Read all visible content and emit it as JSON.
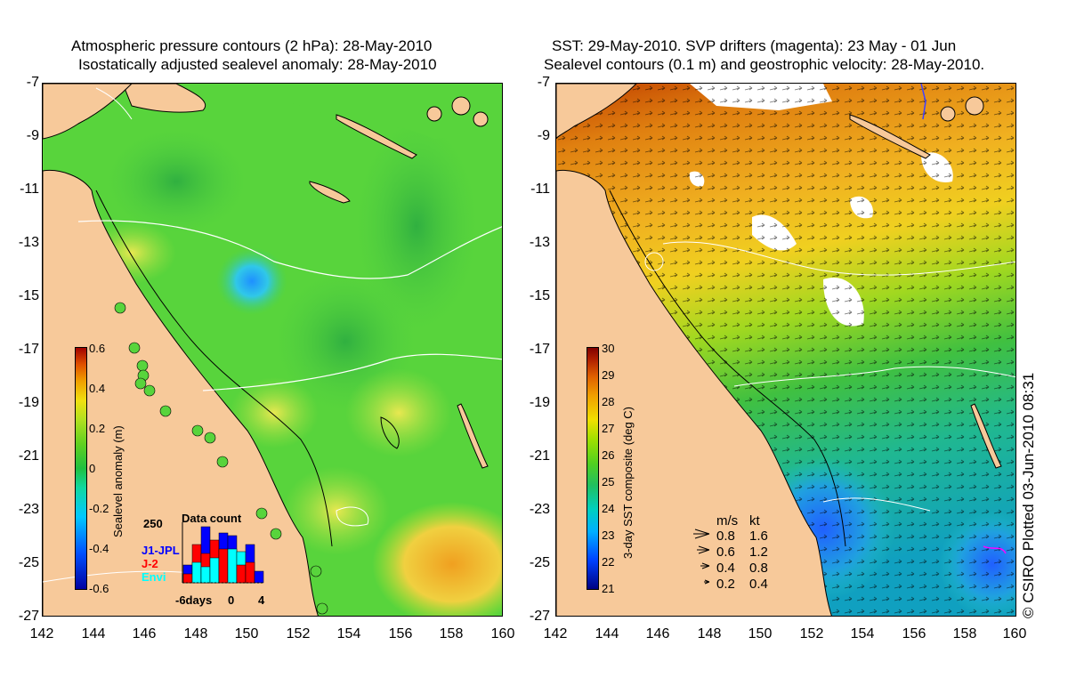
{
  "left": {
    "title_line1": "Atmospheric pressure contours (2 hPa): 28-May-2010",
    "title_line2": "Isostatically adjusted sealevel anomaly: 28-May-2010",
    "colorbar": {
      "label": "Sealevel anomaly (m)",
      "ticks": [
        "0.6",
        "0.4",
        "0.2",
        "0",
        "-0.2",
        "-0.4",
        "-0.6"
      ],
      "colors": [
        "#0000a0",
        "#0050ff",
        "#00c8ff",
        "#10d8a0",
        "#20c040",
        "#60d020",
        "#b0e020",
        "#f0e010",
        "#f0a000",
        "#e05000",
        "#a00000"
      ]
    },
    "data_count": {
      "title": "Data count",
      "ymax": "250",
      "xaxis_start": "-6days",
      "xaxis_mid": "0",
      "xaxis_end": "4",
      "satellites": [
        {
          "name": "J1-JPL",
          "color": "#0000ff"
        },
        {
          "name": "J-2",
          "color": "#ff0000"
        },
        {
          "name": "Envi",
          "color": "#00ffff"
        }
      ]
    }
  },
  "right": {
    "title_line1": "SST: 29-May-2010. SVP drifters (magenta): 23 May - 01 Jun",
    "title_line2": "Sealevel contours (0.1 m) and geostrophic velocity: 28-May-2010.",
    "colorbar": {
      "label": "3-day SST composite (deg C)",
      "ticks": [
        "30",
        "29",
        "28",
        "27",
        "26",
        "25",
        "24",
        "23",
        "22",
        "21"
      ],
      "colors": [
        "#000080",
        "#0040ff",
        "#00b0ff",
        "#00d0c0",
        "#20c060",
        "#50d020",
        "#a0e000",
        "#f0e000",
        "#f0a000",
        "#e06000",
        "#b02000",
        "#800000"
      ]
    },
    "velocity_legend": {
      "header_ms": "m/s",
      "header_kt": "kt",
      "rows": [
        {
          "ms": "0.8",
          "kt": "1.6"
        },
        {
          "ms": "0.6",
          "kt": "1.2"
        },
        {
          "ms": "0.4",
          "kt": "0.8"
        },
        {
          "ms": "0.2",
          "kt": "0.4"
        }
      ]
    }
  },
  "axes": {
    "y_ticks": [
      "-7",
      "-9",
      "-11",
      "-13",
      "-15",
      "-17",
      "-19",
      "-21",
      "-23",
      "-25",
      "-27"
    ],
    "x_ticks": [
      "142",
      "144",
      "146",
      "148",
      "150",
      "152",
      "154",
      "156",
      "158",
      "160"
    ]
  },
  "copyright": "© CSIRO Plotted 03-Jun-2010 08:31"
}
